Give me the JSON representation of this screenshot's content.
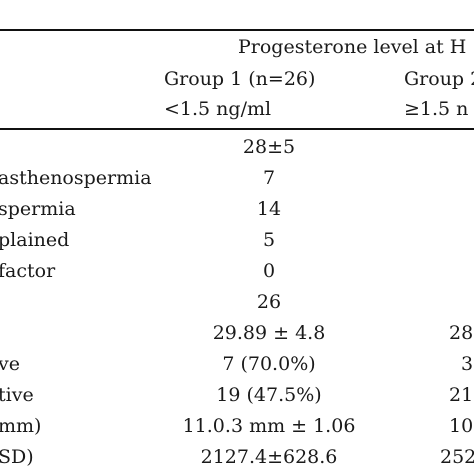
{
  "header": {
    "group_title": "Progesterone level at H",
    "group1_label": "Group 1 (n=26)",
    "group2_label": "Group 2",
    "group1_range": "<1.5 ng/ml",
    "group2_range": "≥1.5 n"
  },
  "rows": [
    {
      "label": "",
      "g1": "28±5",
      "g2": ""
    },
    {
      "label": "asthenospermia",
      "g1": "7",
      "g2": ""
    },
    {
      "label": "spermia",
      "g1": "14",
      "g2": ""
    },
    {
      "label": "plained",
      "g1": "5",
      "g2": ""
    },
    {
      "label": "factor",
      "g1": "0",
      "g2": ""
    },
    {
      "label": "",
      "g1": "26",
      "g2": ""
    },
    {
      "label": "",
      "g1": "29.89 ± 4.8",
      "g2": "28"
    },
    {
      "label": "ve",
      "g1": "7 (70.0%)",
      "g2": "3"
    },
    {
      "label": "tive",
      "g1": "19 (47.5%)",
      "g2": "21"
    },
    {
      "label": "mm)",
      "g1": "11.0.3 mm ± 1.06",
      "g2": "10"
    },
    {
      "label": "SD)",
      "g1": "2127.4±628.6",
      "g2": "252"
    }
  ]
}
